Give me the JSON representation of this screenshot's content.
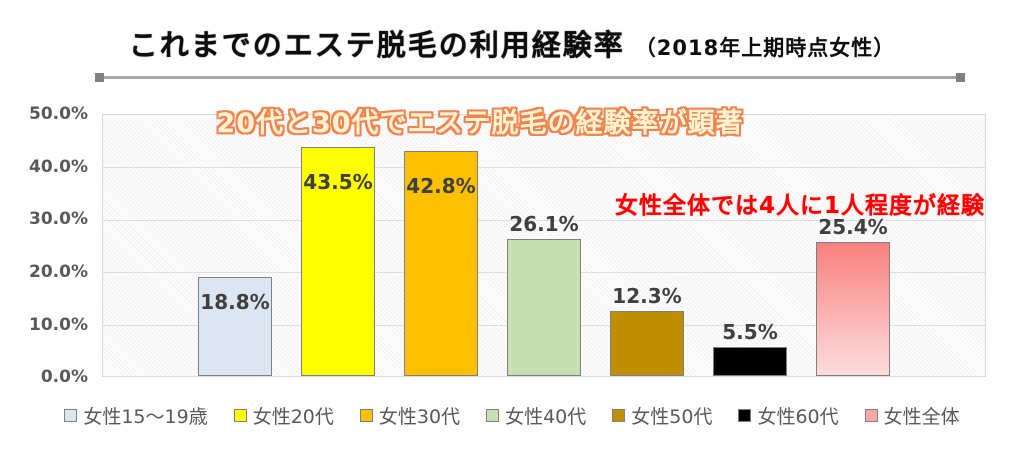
{
  "title": {
    "main": "これまでのエステ脱毛の利用経験率",
    "sub": "（2018年上期時点女性）"
  },
  "annotations": {
    "highlight": "20代と30代でエステ脱毛の経験率が顕著",
    "note": "女性全体では4人に1人程度が経験"
  },
  "chart_data": {
    "type": "bar",
    "title": "これまでのエステ脱毛の利用経験率（2018年上期時点女性）",
    "categories": [
      "女性15～19歳",
      "女性20代",
      "女性30代",
      "女性40代",
      "女性50代",
      "女性60代",
      "女性全体"
    ],
    "values": [
      18.8,
      43.5,
      42.8,
      26.1,
      12.3,
      5.5,
      25.4
    ],
    "value_labels": [
      "18.8%",
      "43.5%",
      "42.8%",
      "26.1%",
      "12.3%",
      "5.5%",
      "25.4%"
    ],
    "ylim": [
      0,
      50
    ],
    "ytick_labels": [
      "50.0%",
      "40.0%",
      "30.0%",
      "20.0%",
      "10.0%",
      "0.0%"
    ],
    "grid": true,
    "legend_position": "bottom",
    "bar_colors": [
      "#dce6f2",
      "#ffff00",
      "#ffc000",
      "#c6e0b4",
      "#bf8f00",
      "#000000",
      "pink-gradient"
    ],
    "pink_gradient": {
      "from": "#f9807f",
      "to": "#fcdddd"
    },
    "label_inside": [
      true,
      true,
      true,
      false,
      false,
      false,
      false
    ],
    "annotation_colors": {
      "highlight_fill": "#fdf3d0",
      "highlight_outline": "#f0834f",
      "note_color": "#ff0000"
    }
  }
}
